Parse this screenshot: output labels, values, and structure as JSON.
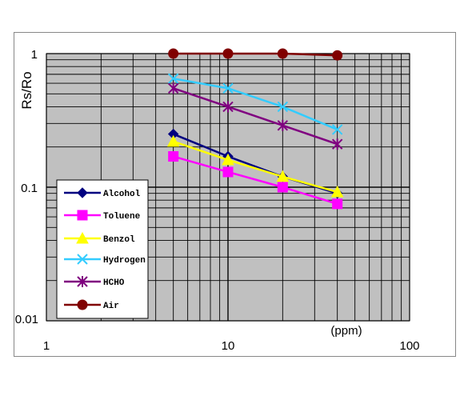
{
  "chart_data": {
    "type": "line",
    "title": "",
    "ylabel": "Rs/Ro",
    "xlabel": "(ppm)",
    "x_scale": "log",
    "y_scale": "log",
    "xlim": [
      1,
      100
    ],
    "ylim": [
      0.01,
      1
    ],
    "x_tick_labels": [
      "1",
      "10",
      "100"
    ],
    "y_tick_labels": [
      "1",
      "0.1",
      "0.01"
    ],
    "grid": true,
    "plot_background": "#c0c0c0",
    "legend_position": "bottom-left",
    "x": [
      5,
      10,
      20,
      40
    ],
    "series": [
      {
        "name": "Alcohol",
        "color": "#000080",
        "marker": "diamond",
        "values": [
          0.25,
          0.17,
          0.12,
          0.09
        ]
      },
      {
        "name": "Toluene",
        "color": "#ff00ff",
        "marker": "square",
        "values": [
          0.17,
          0.13,
          0.1,
          0.075
        ]
      },
      {
        "name": "Benzol",
        "color": "#ffff00",
        "marker": "triangle",
        "values": [
          0.22,
          0.16,
          0.12,
          0.092
        ]
      },
      {
        "name": "Hydrogen",
        "color": "#33ccff",
        "marker": "x",
        "values": [
          0.65,
          0.55,
          0.4,
          0.27
        ]
      },
      {
        "name": "HCHO",
        "color": "#800080",
        "marker": "star",
        "values": [
          0.55,
          0.4,
          0.29,
          0.21
        ]
      },
      {
        "name": "Air",
        "color": "#800000",
        "marker": "circle",
        "values": [
          1.0,
          1.0,
          1.0,
          0.97
        ]
      }
    ]
  }
}
